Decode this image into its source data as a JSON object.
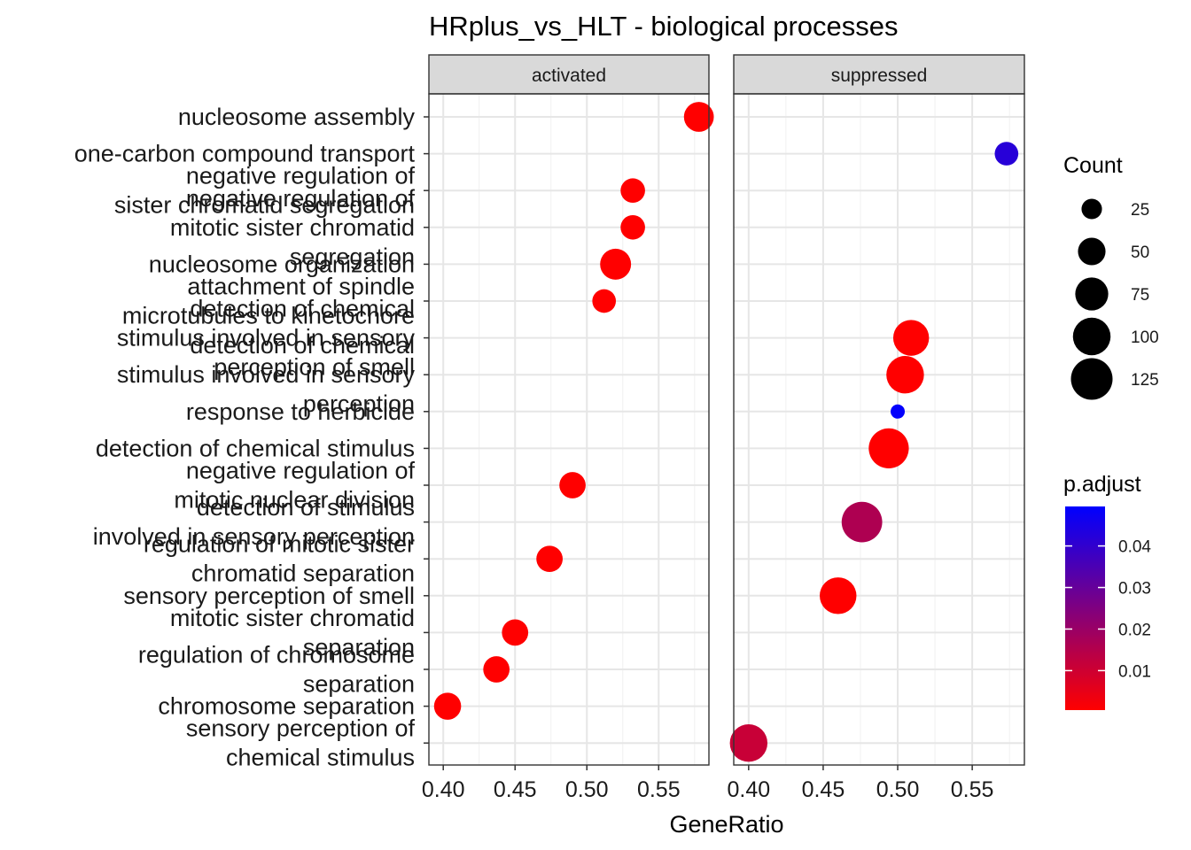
{
  "chart_data": {
    "type": "scatter",
    "title": "HRplus_vs_HLT - biological processes",
    "xlabel": "GeneRatio",
    "ylabel": "",
    "facets": [
      "activated",
      "suppressed"
    ],
    "xlim": [
      0.39,
      0.585
    ],
    "x_ticks": [
      0.4,
      0.45,
      0.5,
      0.55
    ],
    "x_tick_labels": [
      "0.40",
      "0.45",
      "0.50",
      "0.55"
    ],
    "categories": [
      [
        "nucleosome assembly"
      ],
      [
        "one-carbon compound transport"
      ],
      [
        "negative regulation of",
        "sister chromatid segregation"
      ],
      [
        "negative regulation of",
        "mitotic sister chromatid",
        "segregation"
      ],
      [
        "nucleosome organization"
      ],
      [
        "attachment of spindle",
        "microtubules to kinetochore"
      ],
      [
        "detection of chemical",
        "stimulus involved in sensory",
        "perception of smell"
      ],
      [
        "detection of chemical",
        "stimulus involved in sensory",
        "perception"
      ],
      [
        "response to herbicide"
      ],
      [
        "detection of chemical stimulus"
      ],
      [
        "negative regulation of",
        "mitotic nuclear division"
      ],
      [
        "detection of stimulus",
        "involved in sensory perception"
      ],
      [
        "regulation of mitotic sister",
        "chromatid separation"
      ],
      [
        "sensory perception of smell"
      ],
      [
        "mitotic sister chromatid",
        "separation"
      ],
      [
        "regulation of chromosome",
        "separation"
      ],
      [
        "chromosome separation"
      ],
      [
        "sensory perception of",
        "chemical stimulus"
      ]
    ],
    "series": [
      {
        "facet": "activated",
        "points": [
          {
            "term": 0,
            "x": 0.578,
            "count": 60,
            "p_adjust": 0.0005
          },
          {
            "term": 2,
            "x": 0.532,
            "count": 38,
            "p_adjust": 0.0005
          },
          {
            "term": 3,
            "x": 0.532,
            "count": 38,
            "p_adjust": 0.0005
          },
          {
            "term": 4,
            "x": 0.52,
            "count": 65,
            "p_adjust": 0.0005
          },
          {
            "term": 5,
            "x": 0.512,
            "count": 35,
            "p_adjust": 0.0005
          },
          {
            "term": 10,
            "x": 0.49,
            "count": 45,
            "p_adjust": 0.0005
          },
          {
            "term": 12,
            "x": 0.474,
            "count": 45,
            "p_adjust": 0.0005
          },
          {
            "term": 14,
            "x": 0.45,
            "count": 45,
            "p_adjust": 0.0005
          },
          {
            "term": 15,
            "x": 0.437,
            "count": 45,
            "p_adjust": 0.0005
          },
          {
            "term": 16,
            "x": 0.403,
            "count": 48,
            "p_adjust": 0.0005
          }
        ]
      },
      {
        "facet": "suppressed",
        "points": [
          {
            "term": 1,
            "x": 0.573,
            "count": 35,
            "p_adjust": 0.042
          },
          {
            "term": 6,
            "x": 0.509,
            "count": 90,
            "p_adjust": 0.0005
          },
          {
            "term": 7,
            "x": 0.505,
            "count": 100,
            "p_adjust": 0.0005
          },
          {
            "term": 8,
            "x": 0.5,
            "count": 10,
            "p_adjust": 0.049
          },
          {
            "term": 9,
            "x": 0.494,
            "count": 115,
            "p_adjust": 0.0005
          },
          {
            "term": 11,
            "x": 0.476,
            "count": 118,
            "p_adjust": 0.016
          },
          {
            "term": 13,
            "x": 0.46,
            "count": 95,
            "p_adjust": 0.0005
          },
          {
            "term": 17,
            "x": 0.4,
            "count": 100,
            "p_adjust": 0.011
          }
        ]
      }
    ],
    "size_legend": {
      "title": "Count",
      "values": [
        25,
        50,
        75,
        100,
        125
      ]
    },
    "color_legend": {
      "title": "p.adjust",
      "ticks": [
        0.01,
        0.02,
        0.03,
        0.04
      ],
      "tick_labels": [
        "0.01",
        "0.02",
        "0.03",
        "0.04"
      ],
      "range": [
        0.0005,
        0.0495
      ],
      "low_color": "#FF0000",
      "high_color": "#0000FF"
    },
    "grid": true,
    "legend_position": "right"
  }
}
